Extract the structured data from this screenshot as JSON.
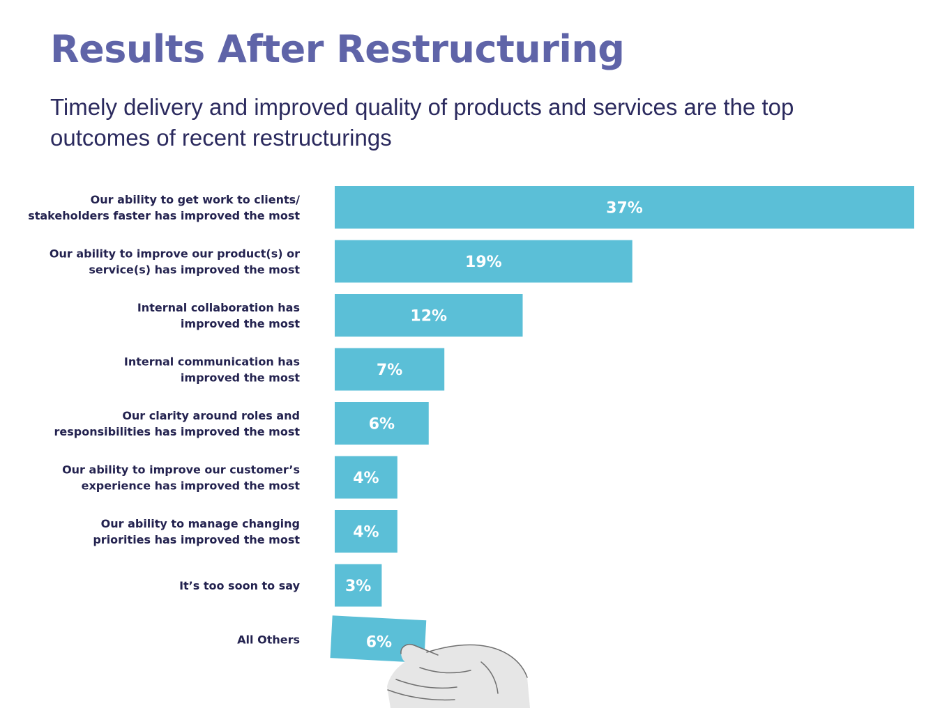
{
  "chart_data": {
    "type": "bar",
    "orientation": "horizontal",
    "title": "Results After Restructuring",
    "subtitle": "Timely delivery and improved quality of products and services are the top outcomes of recent restructurings",
    "categories": [
      [
        "Our ability to get work to clients/",
        "stakeholders faster has improved the most"
      ],
      [
        "Our ability to improve our product(s) or",
        "service(s) has improved the most"
      ],
      [
        "Internal collaboration has",
        "improved the most"
      ],
      [
        "Internal communication has",
        "improved the most"
      ],
      [
        "Our clarity around roles and",
        "responsibilities has improved the most"
      ],
      [
        "Our ability to improve our customer’s",
        "experience has improved the most"
      ],
      [
        "Our ability to manage changing",
        "priorities has improved the most"
      ],
      [
        "It’s too soon to say"
      ],
      [
        "All Others"
      ]
    ],
    "values": [
      37,
      19,
      12,
      7,
      6,
      4,
      4,
      3,
      6
    ],
    "value_labels": [
      "37%",
      "19%",
      "12%",
      "7%",
      "6%",
      "4%",
      "4%",
      "3%",
      "6%"
    ],
    "unit": "%",
    "xlim": [
      0,
      37
    ],
    "grid": false,
    "legend": "none",
    "bar_color": "#5bbfd7",
    "title_color": "#5f64a8",
    "text_color": "#23224f"
  }
}
